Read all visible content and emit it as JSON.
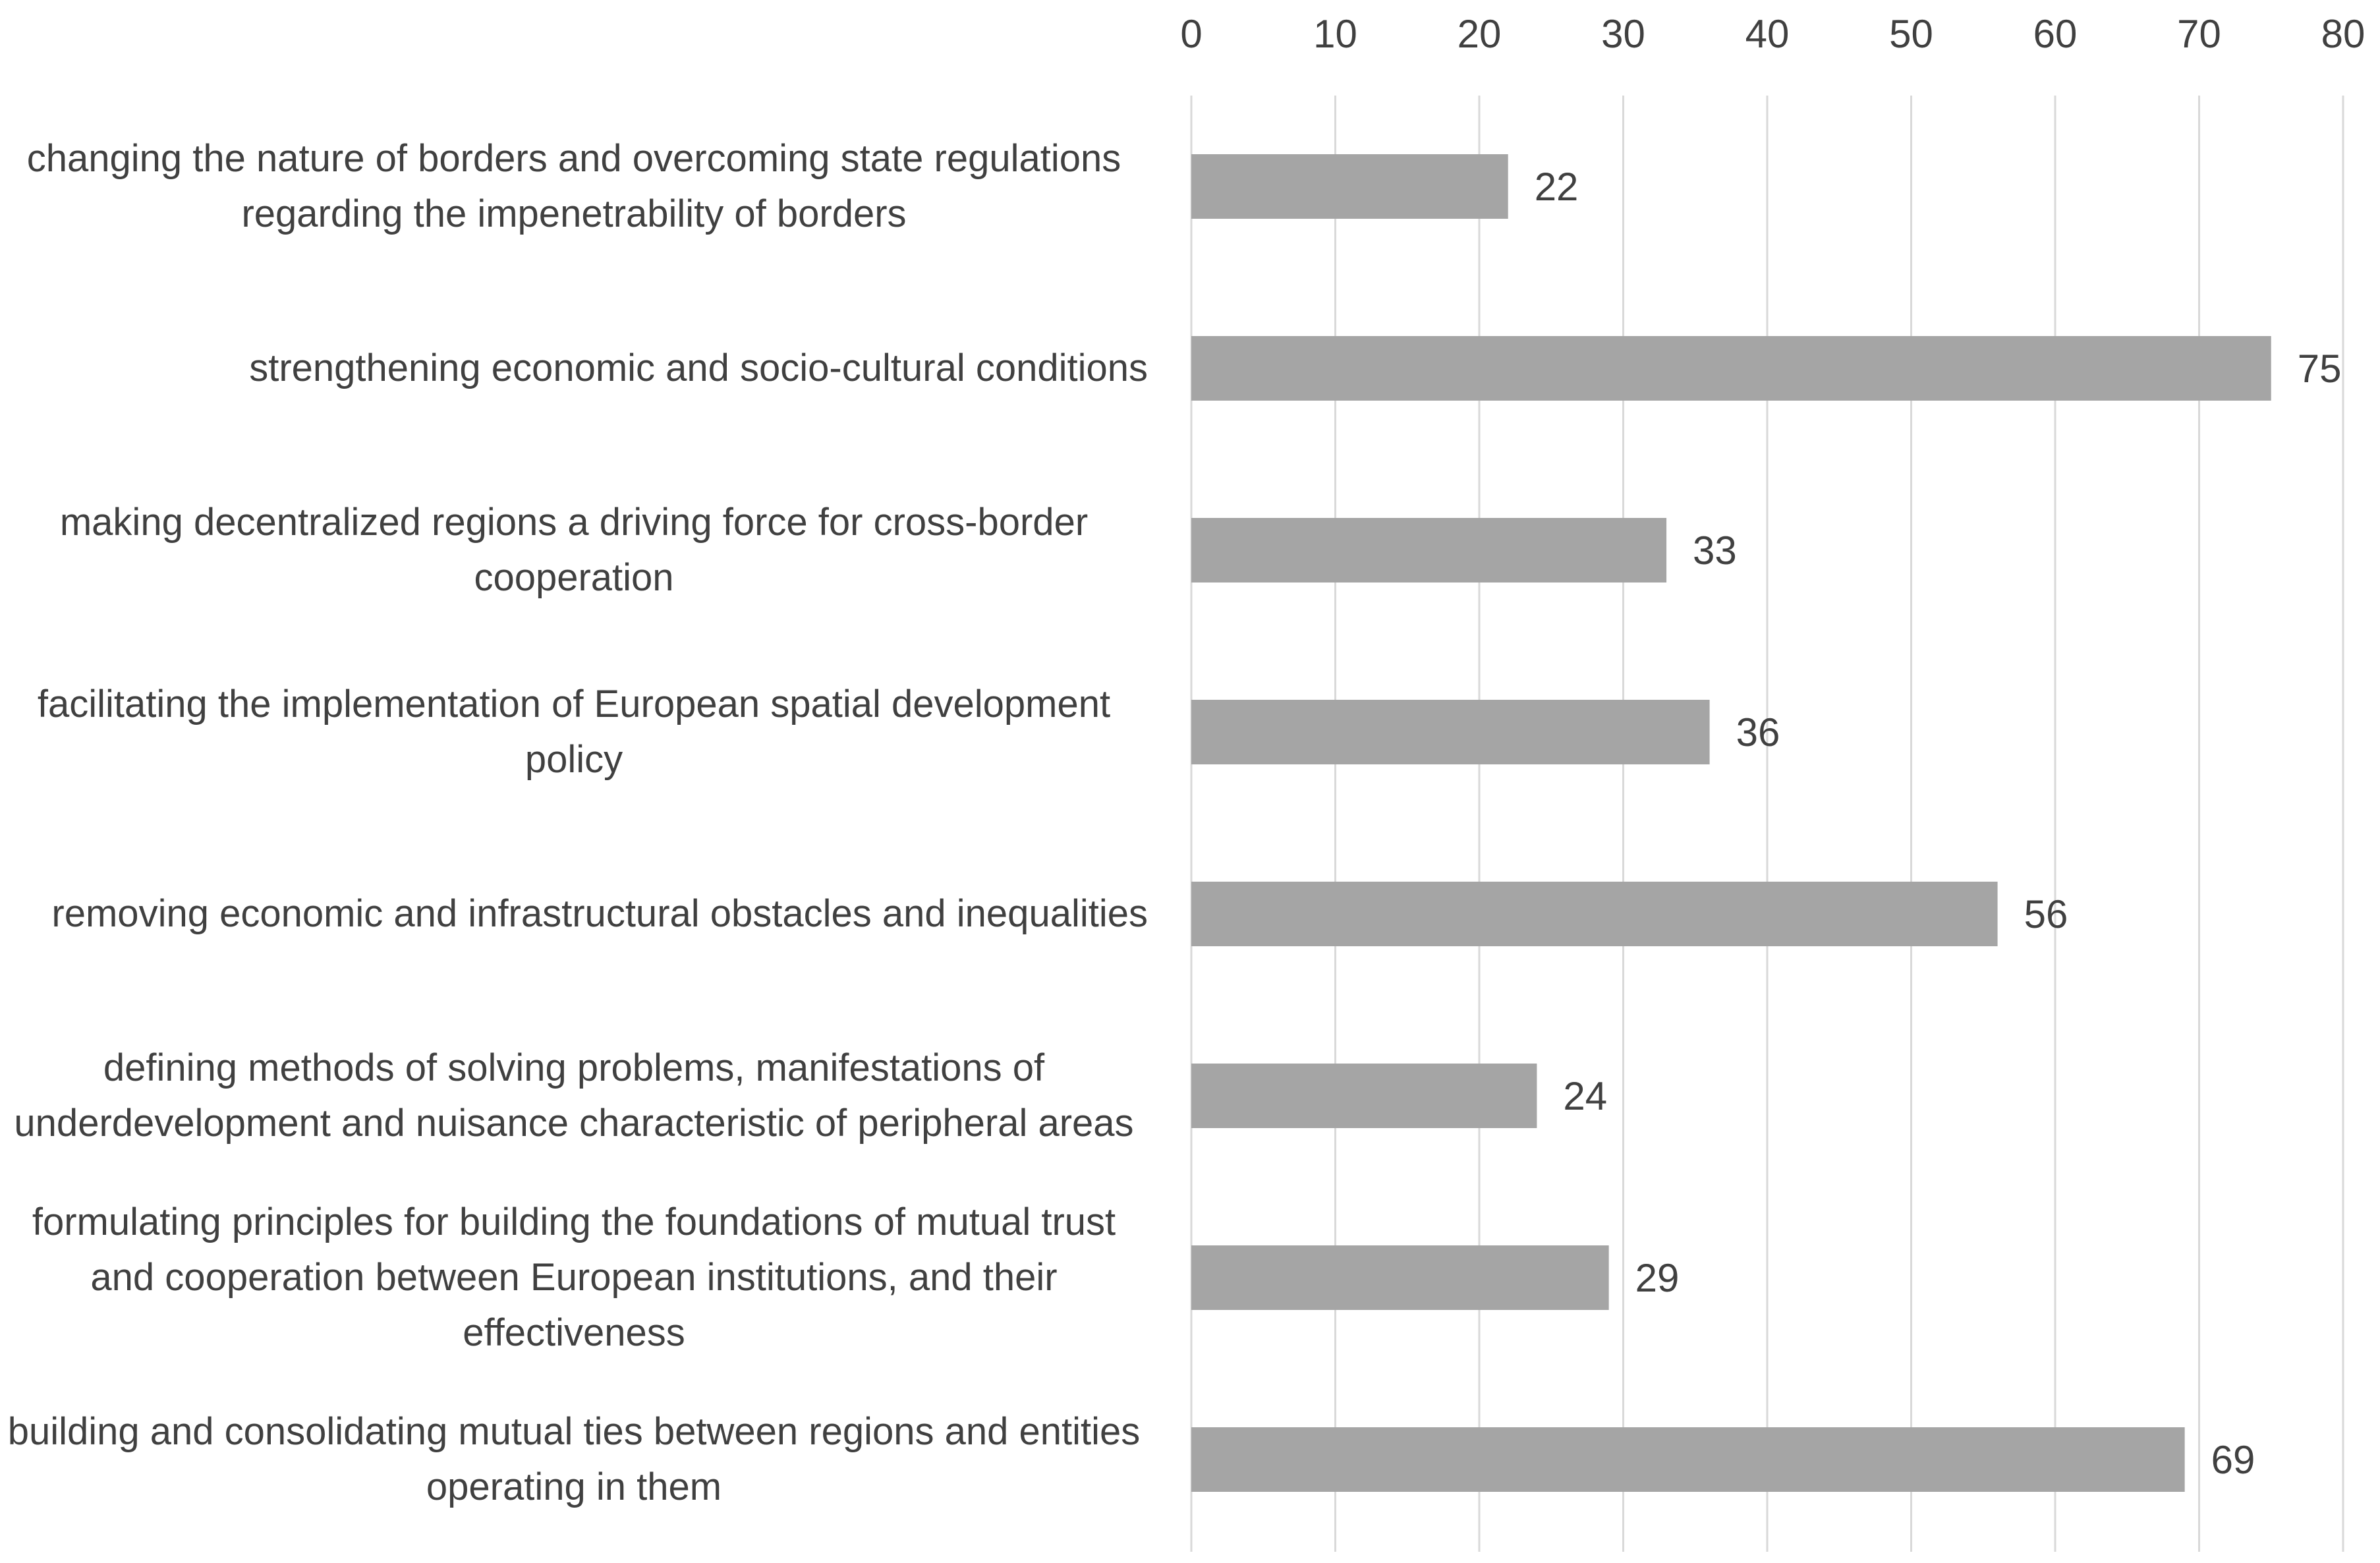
{
  "chart_data": {
    "type": "bar",
    "orientation": "horizontal",
    "title": "",
    "xlabel": "",
    "ylabel": "",
    "xlim": [
      0,
      80
    ],
    "x_ticks": [
      0,
      10,
      20,
      30,
      40,
      50,
      60,
      70,
      80
    ],
    "x_tick_labels": [
      "0",
      "10",
      "20",
      "30",
      "40",
      "50",
      "60",
      "70",
      "80"
    ],
    "x_axis_position": "top",
    "grid": true,
    "legend": "none",
    "bar_color": "#a5a5a5",
    "categories": [
      "changing the nature of borders and overcoming state regulations regarding the impenetrability of borders",
      "strengthening economic and socio-cultural conditions",
      "making decentralized regions a driving force for cross-border cooperation",
      "facilitating the implementation of European spatial development policy",
      "removing economic and infrastructural obstacles and inequalities",
      "defining methods of solving problems, manifestations of underdevelopment and nuisance characteristic of peripheral areas",
      "formulating principles for building the foundations of mutual trust and cooperation between European institutions, and their effectiveness",
      "building and consolidating mutual ties between regions and entities operating in them"
    ],
    "values": [
      22,
      75,
      33,
      36,
      56,
      24,
      29,
      69
    ],
    "data_labels": [
      "22",
      "75",
      "33",
      "36",
      "56",
      "24",
      "29",
      "69"
    ]
  }
}
